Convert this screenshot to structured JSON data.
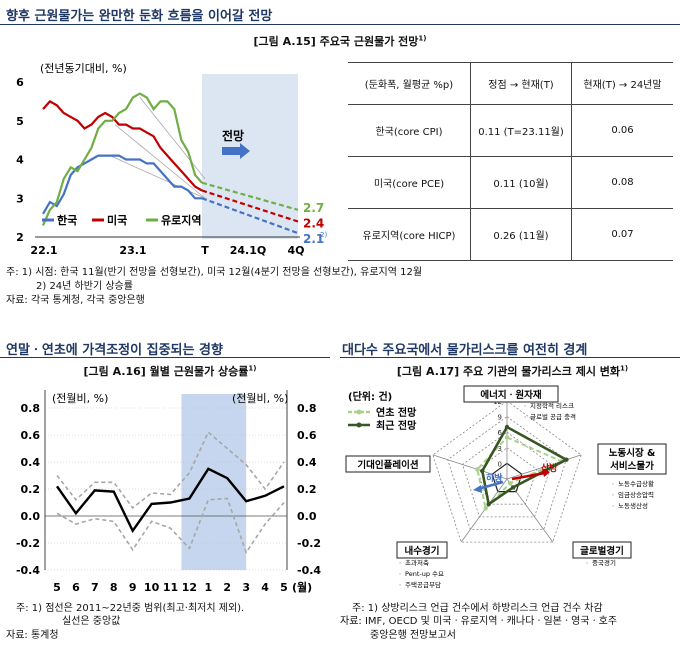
{
  "top": {
    "heading": "향후 근원물가는 완만한 둔화 흐름을 이어갈 전망",
    "fig_title": "[그림 A.15] 주요국 근원물가 전망",
    "fig_sup": "1)",
    "unit": "(전년동기대비, %)",
    "forecast_label": "전망",
    "end_labels": [
      "2.7",
      "2.4",
      "2.1"
    ],
    "end_sup": "2)",
    "notes": [
      "주: 1) 시점: 한국 11월(반기 전망을 선형보간), 미국 12월(4분기 전망을 선형보간), 유로지역 12월",
      "2) 24년 하반기 상승률",
      "자료: 각국 통계청, 각국 중앙은행"
    ],
    "table": {
      "header": [
        "(둔화폭, 월평균 %p)",
        "정점 → 현재(T)",
        "현재(T) → 24년말"
      ],
      "rows": [
        [
          "한국(core CPI)",
          "0.11 (T=23.11월)",
          "0.06"
        ],
        [
          "미국(core PCE)",
          "0.11   (10월)",
          "0.08"
        ],
        [
          "유로지역(core HICP)",
          "0.26   (11월)",
          "0.07"
        ]
      ]
    }
  },
  "left": {
    "heading": "연말ㆍ연초에 가격조정이 집중되는 경향",
    "fig_title": "[그림 A.16] 월별 근원물가 상승률",
    "fig_sup": "1)",
    "unit_left": "(전월비, %)",
    "unit_right": "(전월비, %)",
    "month_suffix": "(월)",
    "notes": [
      "주: 1) 점선은 2011~22년중 범위(최고·최저치 제외).",
      "실선은 중앙값",
      "자료: 통계청"
    ]
  },
  "right": {
    "heading": "대다수 주요국에서 물가리스크를 여전히 경계",
    "fig_title": "[그림 A.17] 주요 기관의 물가리스크 제시 변화",
    "fig_sup": "1)",
    "unit": "(단위: 건)",
    "legend": [
      "연초 전망",
      "최근 전망"
    ],
    "arrows": [
      "상방",
      "하방"
    ],
    "scale_labels": [
      "12",
      "9",
      "6",
      "3",
      "0",
      "-3"
    ],
    "axes": [
      {
        "title": [
          "에너지ㆍ원자재"
        ],
        "subs": [
          "ㆍ 지정학적 리스크",
          "ㆍ 글로벌 공급 충격"
        ]
      },
      {
        "title": [
          "노동시장 &",
          "서비스물가"
        ],
        "subs": [
          "ㆍ 노동수급상황",
          "ㆍ 임금상승압력",
          "ㆍ 노동생산성"
        ]
      },
      {
        "title": [
          "글로벌경기"
        ],
        "subs": [
          "ㆍ 중국경기"
        ]
      },
      {
        "title": [
          "내수경기"
        ],
        "subs": [
          "ㆍ 초과저축",
          "ㆍ Pent-up 수요",
          "ㆍ 주택공급부담"
        ]
      },
      {
        "title": [
          "기대인플레이션"
        ],
        "subs": []
      }
    ],
    "notes": [
      "주: 1) 상방리스크 언급 건수에서 하방리스크 언급 건수 차감",
      "자료: IMF, OECD 및 미국ㆍ유로지역ㆍ캐나다ㆍ일본ㆍ영국ㆍ호주",
      "중앙은행 전망보고서"
    ]
  },
  "chart_data": [
    {
      "type": "line",
      "title": "[그림 A.15] 주요국 근원물가 전망",
      "ylabel": "(전년동기대비, %)",
      "ylim": [
        2,
        6
      ],
      "yticks": [
        "2",
        "3",
        "4",
        "5",
        "6"
      ],
      "xticks": [
        "22.1",
        "23.1",
        "T",
        "24.1Q",
        "4Q"
      ],
      "x": [
        "22.1",
        "22.2",
        "22.3",
        "22.4",
        "22.5",
        "22.6",
        "22.7",
        "22.8",
        "22.9",
        "22.10",
        "22.11",
        "22.12",
        "23.1",
        "23.2",
        "23.3",
        "23.4",
        "23.5",
        "23.6",
        "23.7",
        "23.8",
        "23.9",
        "23.10",
        "23.11",
        "23.12"
      ],
      "series": [
        {
          "name": "한국",
          "color": "#4472c4",
          "values": [
            2.6,
            2.9,
            2.8,
            3.1,
            3.6,
            3.8,
            3.9,
            4.0,
            4.1,
            4.1,
            4.1,
            4.1,
            4.0,
            4.0,
            4.0,
            3.9,
            3.9,
            3.7,
            3.5,
            3.3,
            3.3,
            3.2,
            3.0,
            3.0
          ],
          "forecast": [
            [
              "23.12",
              3.0
            ],
            [
              "24.4Q",
              2.1
            ]
          ]
        },
        {
          "name": "미국",
          "color": "#c00000",
          "values": [
            5.3,
            5.5,
            5.4,
            5.2,
            5.1,
            5.0,
            4.8,
            4.9,
            5.1,
            5.2,
            5.1,
            4.9,
            4.9,
            4.8,
            4.8,
            4.7,
            4.6,
            4.3,
            4.1,
            3.9,
            3.7,
            3.5,
            3.3,
            3.2
          ],
          "forecast": [
            [
              "23.12",
              3.2
            ],
            [
              "24.4Q",
              2.4
            ]
          ]
        },
        {
          "name": "유로지역",
          "color": "#70ad47",
          "values": [
            2.3,
            2.7,
            2.9,
            3.5,
            3.8,
            3.7,
            4.0,
            4.3,
            4.8,
            5.0,
            5.0,
            5.2,
            5.3,
            5.6,
            5.7,
            5.6,
            5.3,
            5.5,
            5.5,
            5.3,
            4.5,
            4.2,
            3.6,
            3.4
          ],
          "forecast": [
            [
              "23.12",
              3.4
            ],
            [
              "24.4Q",
              2.7
            ]
          ]
        }
      ],
      "forecast_values": {
        "한국": 2.1,
        "미국": 2.4,
        "유로지역": 2.7
      },
      "legend": "bottom-left"
    },
    {
      "type": "line",
      "title": "[그림 A.16] 월별 근원물가 상승률",
      "ylabel": "(전월비, %)",
      "ylim": [
        -0.4,
        0.8
      ],
      "yticks": [
        "-0.4",
        "-0.2",
        "0.0",
        "0.2",
        "0.4",
        "0.6",
        "0.8"
      ],
      "categories": [
        "5",
        "6",
        "7",
        "8",
        "9",
        "10",
        "11",
        "12",
        "1",
        "2",
        "3",
        "4",
        "5"
      ],
      "shaded": [
        "12",
        "2"
      ],
      "series": [
        {
          "name": "median",
          "color": "#000000",
          "values": [
            0.22,
            0.02,
            0.19,
            0.18,
            -0.11,
            0.09,
            0.1,
            0.13,
            0.35,
            0.28,
            0.11,
            0.15,
            0.22
          ]
        },
        {
          "name": "max",
          "color": "#a6a6a6",
          "values": [
            0.3,
            0.12,
            0.25,
            0.25,
            0.06,
            0.17,
            0.16,
            0.32,
            0.62,
            0.5,
            0.38,
            0.2,
            0.4
          ]
        },
        {
          "name": "min",
          "color": "#a6a6a6",
          "values": [
            0.02,
            -0.06,
            -0.02,
            -0.04,
            -0.25,
            -0.04,
            -0.09,
            -0.24,
            0.12,
            0.13,
            -0.27,
            -0.06,
            0.1
          ]
        }
      ],
      "grid": true
    },
    {
      "type": "radar",
      "title": "[그림 A.17] 주요 기관의 물가리스크 제시 변화",
      "axes": [
        "에너지ㆍ원자재",
        "노동시장 & 서비스물가",
        "글로벌경기",
        "내수경기",
        "기대인플레이션"
      ],
      "rlim": [
        -3,
        12
      ],
      "series": [
        {
          "name": "연초 전망",
          "color": "#a9d18e",
          "values": [
            5,
            8,
            -2,
            4,
            3
          ]
        },
        {
          "name": "최근 전망",
          "color": "#375623",
          "values": [
            7,
            9,
            -1,
            3,
            2
          ]
        }
      ],
      "legend": "top-left"
    }
  ]
}
